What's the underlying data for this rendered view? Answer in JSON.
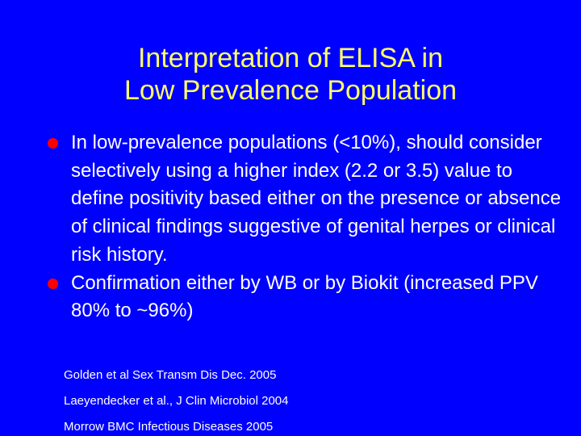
{
  "slide": {
    "title_lines": [
      "Interpretation of ELISA in",
      "Low Prevalence Population"
    ],
    "bullets": [
      "In low-prevalence populations (<10%), should consider selectively using a higher index (2.2 or 3.5) value to  define positivity based either on  the presence or absence of clinical findings suggestive of genital herpes or clinical risk history.",
      "Confirmation either by WB or by Biokit (increased PPV 80% to ~96%)"
    ],
    "references": [
      "Golden et al Sex Transm Dis Dec. 2005",
      "Laeyendecker et al., J Clin Microbiol 2004",
      "Morrow BMC Infectious Diseases 2005"
    ]
  },
  "colors": {
    "background": "#0000ff",
    "title": "#ffff66",
    "text": "#ffffff",
    "bullet": "#ff0000"
  }
}
